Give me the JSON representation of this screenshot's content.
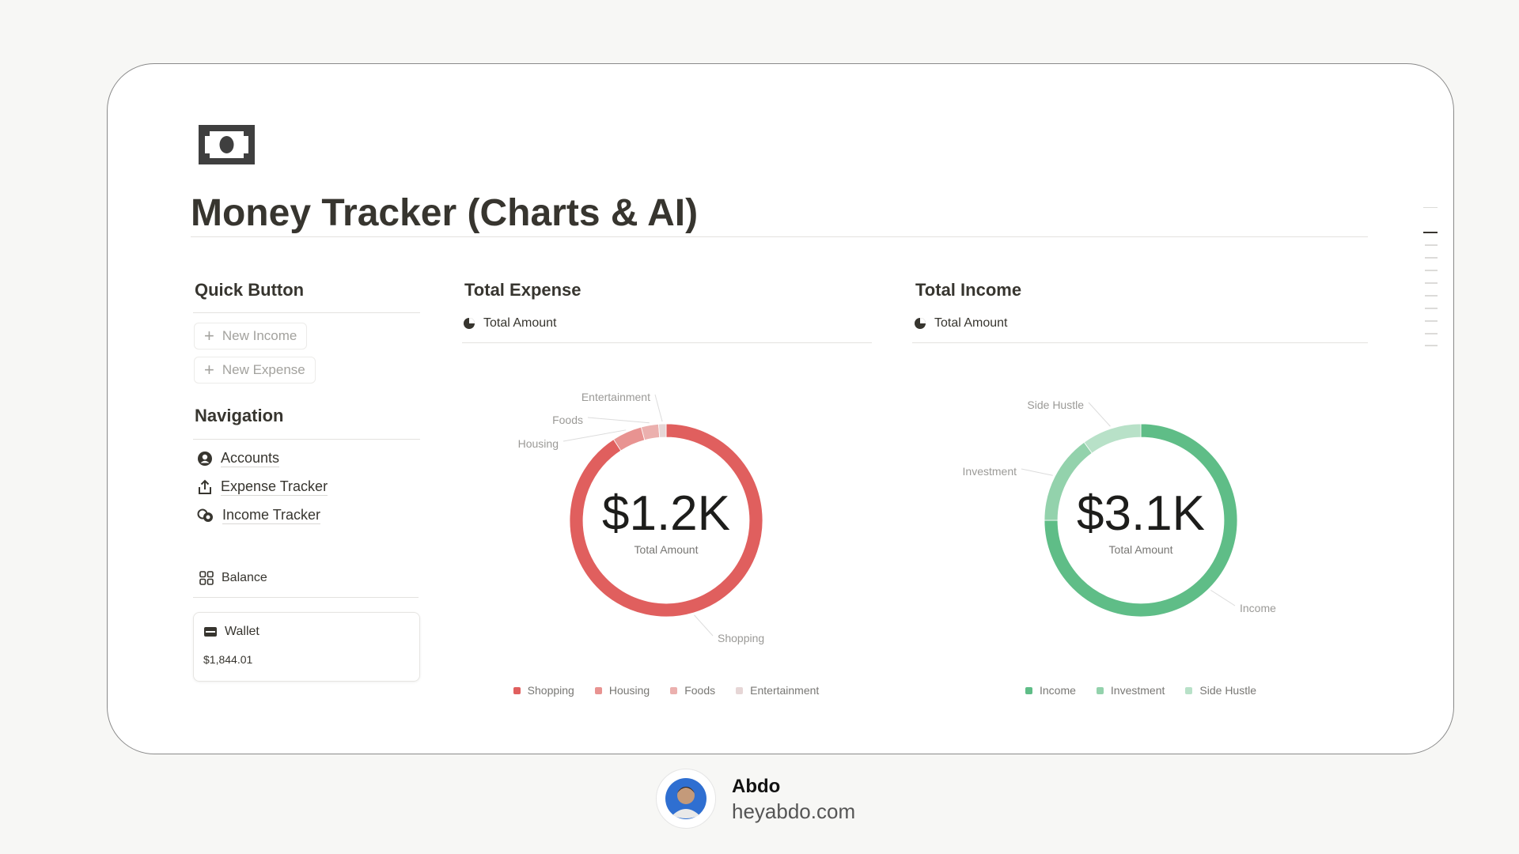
{
  "page": {
    "title": "Money Tracker (Charts & AI)"
  },
  "quick_button": {
    "heading": "Quick Button",
    "buttons": [
      "New Income",
      "New Expense"
    ]
  },
  "navigation": {
    "heading": "Navigation",
    "links": [
      "Accounts",
      "Expense Tracker",
      "Income Tracker"
    ]
  },
  "balance": {
    "heading": "Balance",
    "account": "Wallet",
    "amount": "$1,844.01"
  },
  "chart_data": [
    {
      "type": "pie",
      "donut": true,
      "title": "Total Expense",
      "view": "Total Amount",
      "center_value": "$1.2K",
      "center_label": "Total Amount",
      "categories": [
        "Shopping",
        "Housing",
        "Foods",
        "Entertainment"
      ],
      "values": [
        1090,
        60,
        35,
        15
      ],
      "colors": [
        "#e05f5e",
        "#e89391",
        "#ebb0ae",
        "#e6d6d6"
      ]
    },
    {
      "type": "pie",
      "donut": true,
      "title": "Total Income",
      "view": "Total Amount",
      "center_value": "$3.1K",
      "center_label": "Total Amount",
      "categories": [
        "Income",
        "Investment",
        "Side Hustle"
      ],
      "values": [
        2325,
        465,
        310
      ],
      "colors": [
        "#5fbd87",
        "#93d2ac",
        "#b8e1c8"
      ]
    }
  ],
  "footer": {
    "name": "Abdo",
    "site": "heyabdo.com"
  }
}
